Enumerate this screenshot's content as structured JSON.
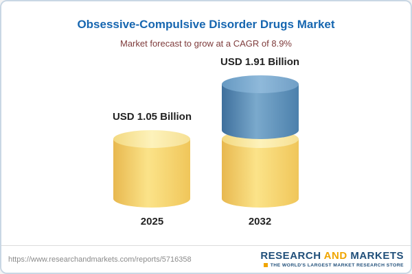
{
  "header": {
    "title": "Obsessive-Compulsive Disorder Drugs Market",
    "subtitle": "Market forecast to grow at a CAGR of 8.9%"
  },
  "chart_data": {
    "type": "bar",
    "title": "Obsessive-Compulsive Disorder Drugs Market",
    "subtitle": "Market forecast to grow at a CAGR of 8.9%",
    "categories": [
      "2025",
      "2032"
    ],
    "values": [
      1.05,
      1.91
    ],
    "value_labels": [
      "USD 1.05 Billion",
      "USD 1.91 Billion"
    ],
    "unit": "USD Billion",
    "cagr": "8.9%",
    "xlabel": "",
    "ylabel": "",
    "legend": "none",
    "grid": false,
    "colors": {
      "bar_base": "#f5cf66",
      "bar_growth": "#4a80ae",
      "title": "#1666b0",
      "subtitle": "#7e3b3b"
    }
  },
  "footer": {
    "url": "https://www.researchandmarkets.com/reports/5716358",
    "logo": {
      "word1": "RESEARCH",
      "word2": "AND",
      "word3": "MARKETS",
      "tagline": "THE WORLD'S LARGEST MARKET RESEARCH STORE"
    }
  }
}
